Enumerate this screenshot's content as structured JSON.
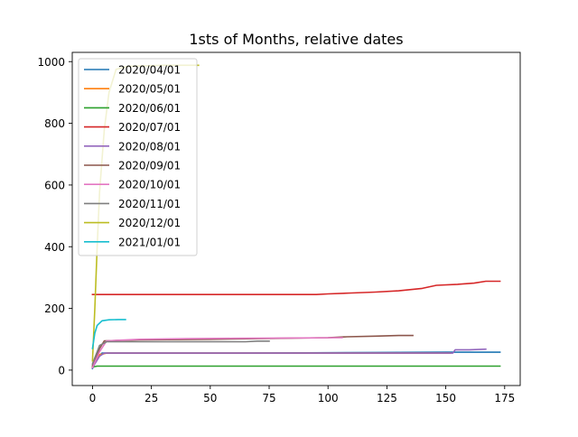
{
  "chart_data": {
    "type": "line",
    "title": "1sts of Months, relative dates",
    "xlabel": "",
    "ylabel": "",
    "xlim": [
      -8.6,
      181.6
    ],
    "ylim": [
      -50,
      1030
    ],
    "xticks": [
      0,
      25,
      50,
      75,
      100,
      125,
      150,
      175
    ],
    "yticks": [
      0,
      200,
      400,
      600,
      800,
      1000
    ],
    "legend_position": "upper-left",
    "grid": false,
    "series": [
      {
        "name": "2020/04/01",
        "color": "#1f77b4",
        "points": [
          [
            0,
            5
          ],
          [
            2,
            40
          ],
          [
            4,
            55
          ],
          [
            30,
            55
          ],
          [
            60,
            55
          ],
          [
            90,
            56
          ],
          [
            120,
            57
          ],
          [
            150,
            58
          ],
          [
            173,
            58
          ]
        ]
      },
      {
        "name": "2020/05/01",
        "color": "#ff7f0e",
        "points": [
          [
            0,
            10
          ],
          [
            3,
            50
          ],
          [
            6,
            55
          ],
          [
            40,
            55
          ],
          [
            80,
            55
          ],
          [
            120,
            55
          ],
          [
            152,
            55
          ]
        ]
      },
      {
        "name": "2020/06/01",
        "color": "#2ca02c",
        "points": [
          [
            0,
            10
          ],
          [
            2,
            13
          ],
          [
            50,
            13
          ],
          [
            100,
            13
          ],
          [
            150,
            13
          ],
          [
            173,
            13
          ]
        ]
      },
      {
        "name": "2020/07/01",
        "color": "#d62728",
        "points": [
          [
            0,
            245
          ],
          [
            50,
            245
          ],
          [
            95,
            245
          ],
          [
            100,
            247
          ],
          [
            110,
            250
          ],
          [
            120,
            253
          ],
          [
            130,
            257
          ],
          [
            140,
            265
          ],
          [
            146,
            275
          ],
          [
            155,
            278
          ],
          [
            162,
            282
          ],
          [
            167,
            288
          ],
          [
            173,
            288
          ]
        ]
      },
      {
        "name": "2020/08/01",
        "color": "#9467bd",
        "points": [
          [
            0,
            8
          ],
          [
            3,
            45
          ],
          [
            5,
            55
          ],
          [
            40,
            55
          ],
          [
            80,
            55
          ],
          [
            120,
            55
          ],
          [
            153,
            55
          ],
          [
            154,
            66
          ],
          [
            160,
            66
          ],
          [
            167,
            68
          ]
        ]
      },
      {
        "name": "2020/09/01",
        "color": "#8c564b",
        "points": [
          [
            0,
            15
          ],
          [
            3,
            70
          ],
          [
            5,
            95
          ],
          [
            20,
            98
          ],
          [
            50,
            100
          ],
          [
            80,
            103
          ],
          [
            100,
            105
          ],
          [
            108,
            108
          ],
          [
            120,
            110
          ],
          [
            130,
            112
          ],
          [
            136,
            112
          ]
        ]
      },
      {
        "name": "2020/10/01",
        "color": "#e377c2",
        "points": [
          [
            0,
            8
          ],
          [
            3,
            60
          ],
          [
            6,
            95
          ],
          [
            20,
            100
          ],
          [
            40,
            102
          ],
          [
            60,
            103
          ],
          [
            80,
            104
          ],
          [
            106,
            105
          ]
        ]
      },
      {
        "name": "2020/11/01",
        "color": "#7f7f7f",
        "points": [
          [
            0,
            20
          ],
          [
            3,
            80
          ],
          [
            6,
            92
          ],
          [
            25,
            92
          ],
          [
            50,
            92
          ],
          [
            65,
            92
          ],
          [
            70,
            94
          ],
          [
            75,
            94
          ]
        ]
      },
      {
        "name": "2020/12/01",
        "color": "#bcbd22",
        "points": [
          [
            0,
            30
          ],
          [
            1,
            200
          ],
          [
            2,
            400
          ],
          [
            3,
            580
          ],
          [
            5,
            780
          ],
          [
            7,
            900
          ],
          [
            10,
            975
          ],
          [
            15,
            985
          ],
          [
            30,
            988
          ],
          [
            45,
            988
          ]
        ]
      },
      {
        "name": "2021/01/01",
        "color": "#17becf",
        "points": [
          [
            0,
            70
          ],
          [
            1,
            120
          ],
          [
            2,
            145
          ],
          [
            4,
            160
          ],
          [
            7,
            163
          ],
          [
            11,
            164
          ],
          [
            14,
            164
          ]
        ]
      }
    ]
  }
}
